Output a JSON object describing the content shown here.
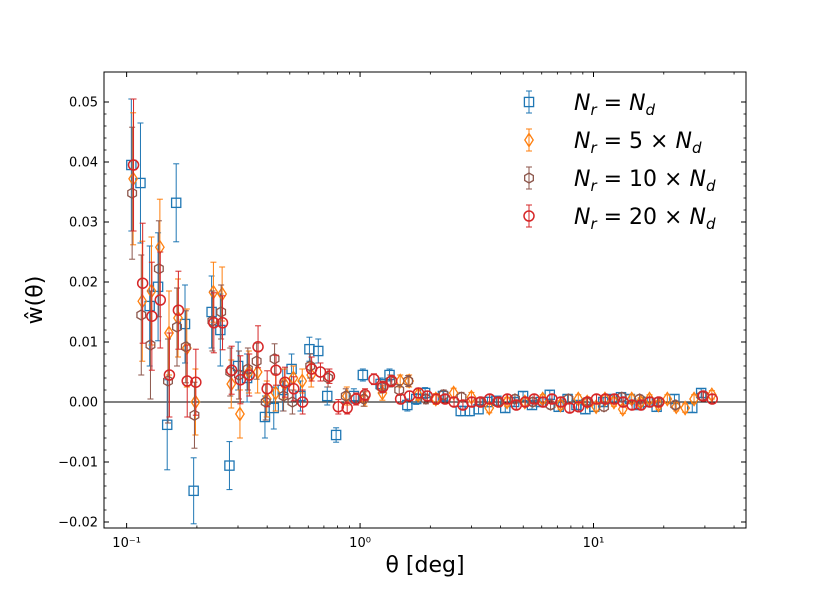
{
  "chart_data": {
    "type": "scatter",
    "title": "",
    "xlabel": "θ [deg]",
    "ylabel": "ŵ(θ)",
    "xscale": "log",
    "xlim": [
      0.08,
      45
    ],
    "ylim": [
      -0.021,
      0.055
    ],
    "grid": false,
    "legend_position": "top-right",
    "x_ticks": [
      {
        "value": 0.1,
        "label": "10⁻¹"
      },
      {
        "value": 1,
        "label": "10⁰"
      },
      {
        "value": 10,
        "label": "10¹"
      }
    ],
    "y_ticks": [
      {
        "value": 0.05,
        "label": "0.05"
      },
      {
        "value": 0.04,
        "label": "0.04"
      },
      {
        "value": 0.03,
        "label": "0.03"
      },
      {
        "value": 0.02,
        "label": "0.02"
      },
      {
        "value": 0.01,
        "label": "0.01"
      },
      {
        "value": 0.0,
        "label": "0.00"
      },
      {
        "value": -0.01,
        "label": "−0.01"
      },
      {
        "value": -0.02,
        "label": "−0.02"
      }
    ],
    "reference_line_y": 0.0,
    "x": [
      0.106,
      0.116,
      0.127,
      0.138,
      0.151,
      0.165,
      0.18,
      0.196,
      0.214,
      0.234,
      0.255,
      0.279,
      0.304,
      0.332,
      0.362,
      0.396,
      0.432,
      0.472,
      0.515,
      0.562,
      0.614,
      0.67,
      0.732,
      0.799,
      0.872,
      0.952,
      1.04,
      1.135,
      1.239,
      1.353,
      1.477,
      1.613,
      1.761,
      1.922,
      2.099,
      2.291,
      2.502,
      2.731,
      2.982,
      3.256,
      3.555,
      3.881,
      4.237,
      4.626,
      5.051,
      5.515,
      6.021,
      6.573,
      7.177,
      7.836,
      8.555,
      9.34,
      10.2,
      11.13,
      12.16,
      13.27,
      14.49,
      15.82,
      17.27,
      18.86,
      20.59,
      22.48,
      24.54,
      26.8,
      29.26,
      31.94
    ],
    "series": [
      {
        "name": "$N_r = N_d$",
        "marker": "square",
        "color": "#1f77b4",
        "values": [
          0.0395,
          0.0365,
          0.016,
          0.0192,
          -0.0038,
          0.0332,
          0.013,
          -0.0148,
          0.015,
          0.012,
          -0.0106,
          0.006,
          0.004,
          -0.0025,
          -0.001,
          0.002,
          0.0055,
          0.001,
          0.0088,
          0.0085,
          0.001,
          -0.0055,
          0.001,
          0.0045,
          0.003,
          0.0045,
          -0.0005,
          0.0005,
          0.0015,
          0.001,
          -0.0015,
          -0.0015,
          -0.0012,
          0.0,
          0.0002,
          -0.001,
          0.0,
          0.001,
          -0.0005,
          0.0,
          0.0012,
          -0.0008,
          0.0005,
          -0.0005,
          -0.0012,
          -0.0008,
          0.0,
          0.0005,
          0.0008,
          0.0005,
          -0.0005,
          0.0,
          -0.0008,
          0.0005,
          -0.001,
          0.0015
        ],
        "errors": [
          0.011,
          0.01,
          0.01,
          0.009,
          0.0075,
          0.0065,
          0.0065,
          0.0055,
          0.006,
          0.006,
          0.004,
          0.004,
          0.004,
          0.0035,
          0.0035,
          0.0035,
          0.0025,
          0.0025,
          0.002,
          0.002,
          0.0015,
          0.0012,
          0.0012,
          0.001,
          0.001,
          0.001,
          0.001,
          0.0009,
          0.0009,
          0.0009,
          0.0008,
          0.0008,
          0.0008,
          0.0008,
          0.0007,
          0.0007,
          0.0007,
          0.0007,
          0.0007,
          0.0007,
          0.0007,
          0.0007,
          0.0007,
          0.0007,
          0.0007,
          0.0007,
          0.0007,
          0.0007,
          0.0007,
          0.0007,
          0.0007,
          0.0007,
          0.0007,
          0.0007,
          0.0007,
          0.0007
        ],
        "x_index_offset": 0,
        "x_indices": [
          0,
          1,
          2,
          3,
          4,
          5,
          6,
          7,
          9,
          10,
          11,
          12,
          13,
          15,
          16,
          17,
          18,
          19,
          20,
          21,
          22,
          23,
          25,
          26,
          28,
          29,
          31,
          32,
          33,
          35,
          37,
          38,
          39,
          40,
          41,
          42,
          43,
          44,
          45,
          46,
          47,
          48,
          49,
          50,
          51,
          52,
          53,
          54,
          55,
          56,
          57,
          58,
          59,
          61,
          63,
          64
        ]
      },
      {
        "name": "$N_r = 5 \\times N_d$",
        "marker": "diamond",
        "color": "#ff7f0e",
        "values": [
          0.0372,
          0.0168,
          0.0185,
          0.0258,
          0.0115,
          0.014,
          0.009,
          0.0,
          0.0183,
          0.018,
          0.003,
          -0.002,
          0.005,
          0.005,
          0.0005,
          0.0015,
          0.003,
          0.004,
          0.0035,
          0.0045,
          0.001,
          0.0005,
          0.0015,
          0.0035,
          0.0035,
          0.0012,
          0.0005,
          0.0015,
          0.0008,
          -0.001,
          0.0,
          0.0,
          0.0005,
          -0.0005,
          0.0005,
          0.0,
          -0.0008,
          0.0005,
          0.0,
          -0.0012,
          0.0005,
          0.0,
          0.0005,
          -0.0005,
          0.0005,
          -0.0008,
          -0.001,
          0.0005,
          0.0012
        ],
        "errors": [
          0.011,
          0.01,
          0.009,
          0.008,
          0.007,
          0.0065,
          0.0065,
          0.0055,
          0.005,
          0.0045,
          0.004,
          0.004,
          0.0035,
          0.0035,
          0.003,
          0.003,
          0.0025,
          0.002,
          0.002,
          0.002,
          0.0015,
          0.0012,
          0.0012,
          0.001,
          0.001,
          0.0009,
          0.0009,
          0.0008,
          0.0008,
          0.0008,
          0.0007,
          0.0007,
          0.0007,
          0.0007,
          0.0007,
          0.0007,
          0.0007,
          0.0007,
          0.0007,
          0.0007,
          0.0007,
          0.0007,
          0.0007,
          0.0007,
          0.0007,
          0.0007,
          0.0007,
          0.0007,
          0.0007
        ],
        "x_indices": [
          0,
          1,
          2,
          3,
          4,
          5,
          6,
          7,
          9,
          10,
          11,
          12,
          13,
          14,
          15,
          16,
          17,
          18,
          19,
          20,
          24,
          26,
          28,
          30,
          31,
          32,
          34,
          36,
          38,
          40,
          42,
          44,
          46,
          48,
          50,
          51,
          52,
          53,
          54,
          55,
          56,
          57,
          58,
          59,
          60,
          61,
          62,
          63,
          65
        ]
      },
      {
        "name": "$N_r = 10 \\times N_d$",
        "marker": "hexagon",
        "color": "#8c564b",
        "values": [
          0.0348,
          0.0145,
          0.0095,
          0.0222,
          0.0035,
          0.0125,
          0.0092,
          -0.0022,
          0.0135,
          0.015,
          0.005,
          0.0045,
          0.0055,
          0.0068,
          0.0,
          0.0072,
          0.001,
          0.0,
          0.006,
          0.004,
          0.001,
          0.0005,
          0.0025,
          0.0035,
          0.002,
          0.0035,
          0.0005,
          0.0012,
          0.0008,
          0.0,
          0.0,
          0.0005,
          0.0,
          -0.0005,
          0.0005,
          0.0,
          -0.0008,
          0.0008,
          0.0005,
          0.0,
          -0.0005,
          0.001
        ],
        "errors": [
          0.011,
          0.01,
          0.009,
          0.008,
          0.007,
          0.0065,
          0.006,
          0.0055,
          0.005,
          0.0045,
          0.004,
          0.004,
          0.0035,
          0.003,
          0.003,
          0.0025,
          0.0025,
          0.002,
          0.002,
          0.0015,
          0.0012,
          0.0012,
          0.001,
          0.001,
          0.0009,
          0.0009,
          0.0008,
          0.0008,
          0.0008,
          0.0007,
          0.0007,
          0.0007,
          0.0007,
          0.0007,
          0.0007,
          0.0007,
          0.0007,
          0.0007,
          0.0007,
          0.0007,
          0.0007,
          0.0007
        ],
        "x_indices": [
          0,
          1,
          2,
          3,
          4,
          5,
          6,
          7,
          9,
          10,
          11,
          12,
          13,
          14,
          15,
          16,
          17,
          18,
          20,
          22,
          24,
          26,
          28,
          29,
          30,
          31,
          33,
          35,
          37,
          39,
          41,
          43,
          45,
          47,
          49,
          51,
          53,
          55,
          57,
          59,
          61,
          64
        ]
      },
      {
        "name": "$N_r = 20 \\times N_d$",
        "marker": "circle",
        "color": "#d62728",
        "values": [
          0.0395,
          0.0198,
          0.0143,
          0.017,
          0.0045,
          0.0153,
          0.0035,
          0.0033,
          0.0132,
          0.0132,
          0.0053,
          0.0037,
          0.0045,
          0.0092,
          0.0022,
          0.0053,
          0.0033,
          0.0022,
          0.0,
          0.0055,
          0.005,
          0.0043,
          -0.0008,
          -0.001,
          0.0005,
          0.0012,
          0.0038,
          0.0025,
          0.0035,
          0.0005,
          0.001,
          0.0015,
          0.001,
          0.0005,
          0.0005,
          0.0,
          -0.0005,
          0.0,
          0.0,
          0.0005,
          0.0,
          0.0005,
          -0.0005,
          0.0,
          0.0005,
          0.0,
          0.0005,
          0.0,
          -0.001,
          -0.0008,
          0.0,
          0.0005,
          0.0005,
          0.0005,
          0.0,
          -0.0005,
          -0.0005,
          0.0,
          0.0,
          0.001,
          0.0005
        ],
        "errors": [
          0.011,
          0.01,
          0.009,
          0.008,
          0.007,
          0.0065,
          0.006,
          0.0055,
          0.005,
          0.0045,
          0.004,
          0.004,
          0.0035,
          0.0035,
          0.003,
          0.0025,
          0.0025,
          0.002,
          0.002,
          0.002,
          0.0015,
          0.0012,
          0.0012,
          0.001,
          0.001,
          0.001,
          0.0009,
          0.0009,
          0.0009,
          0.0008,
          0.0008,
          0.0008,
          0.0008,
          0.0007,
          0.0007,
          0.0007,
          0.0007,
          0.0007,
          0.0007,
          0.0007,
          0.0007,
          0.0007,
          0.0007,
          0.0007,
          0.0007,
          0.0007,
          0.0007,
          0.0007,
          0.0007,
          0.0007,
          0.0007,
          0.0007,
          0.0007,
          0.0007,
          0.0007,
          0.0007,
          0.0007,
          0.0007,
          0.0007,
          0.0007,
          0.0007
        ],
        "x_indices": [
          0,
          1,
          2,
          3,
          4,
          5,
          6,
          7,
          9,
          10,
          11,
          12,
          13,
          14,
          15,
          16,
          17,
          18,
          19,
          20,
          21,
          22,
          23,
          24,
          25,
          26,
          27,
          28,
          29,
          30,
          31,
          32,
          33,
          34,
          35,
          36,
          37,
          38,
          39,
          40,
          41,
          42,
          43,
          44,
          45,
          46,
          47,
          48,
          49,
          50,
          51,
          52,
          53,
          54,
          55,
          56,
          57,
          58,
          59,
          64,
          65
        ]
      }
    ],
    "legend_entries": [
      {
        "label_base": "N",
        "label_sub": "r",
        "label_mid": " = ",
        "label_factor": "",
        "label_end_base": "N",
        "label_end_sub": "d",
        "marker": "square",
        "color": "#1f77b4"
      },
      {
        "label_base": "N",
        "label_sub": "r",
        "label_mid": " = 5 × ",
        "label_factor": "",
        "label_end_base": "N",
        "label_end_sub": "d",
        "marker": "diamond",
        "color": "#ff7f0e"
      },
      {
        "label_base": "N",
        "label_sub": "r",
        "label_mid": " = 10 × ",
        "label_factor": "",
        "label_end_base": "N",
        "label_end_sub": "d",
        "marker": "hexagon",
        "color": "#8c564b"
      },
      {
        "label_base": "N",
        "label_sub": "r",
        "label_mid": " = 20 × ",
        "label_factor": "",
        "label_end_base": "N",
        "label_end_sub": "d",
        "marker": "circle",
        "color": "#d62728"
      }
    ]
  }
}
